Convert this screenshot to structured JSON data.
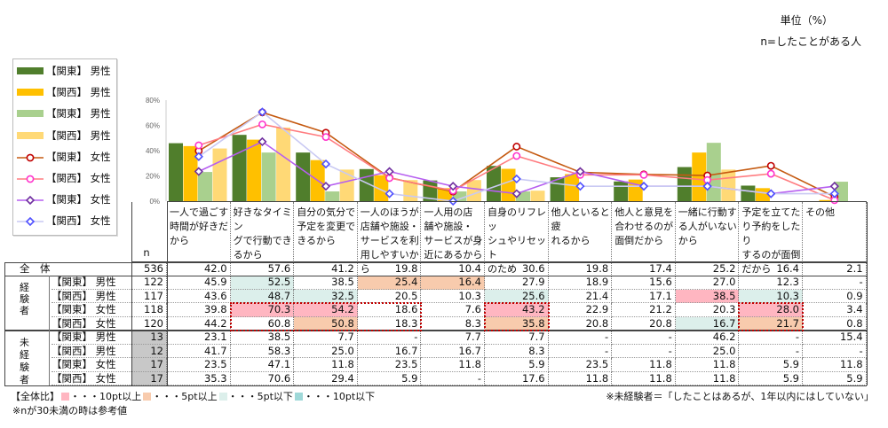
{
  "unit_label": "単位（%）",
  "base_label": "n=したことがある人",
  "chart_data": {
    "type": "bar+line",
    "yticks": [
      "0%",
      "20%",
      "40%",
      "60%",
      "80%"
    ],
    "ylim": [
      0,
      80
    ],
    "categories": [
      "一人で過ごす\n時間が好きだ\nから",
      "好きなタイミン\nグで行動でき\nるから",
      "自分の気分で\n予定を変更で\nきるから",
      "一人のほうが\n店舗や施設・\nサービスを利\n用しやすいから",
      "一人用の店\n舗や施設・\nサービスが身\n近にあるから",
      "自身のリフレッ\nシュやリセット\nのため",
      "他人といると疲\nれるから",
      "他人と意見を\n合わせるのが\n面倒だから",
      "一緒に行動す\nる人がいない\nから",
      "予定を立てた\nり予約をしたり\nするのが面倒\nだから",
      "その他"
    ],
    "series": [
      {
        "name": "【関東】 男性",
        "kind": "bar",
        "color": "#507e2c",
        "values": [
          45.9,
          52.5,
          38.5,
          25.4,
          16.4,
          27.9,
          18.9,
          15.6,
          27.0,
          12.3,
          0
        ]
      },
      {
        "name": "【関西】 男性",
        "kind": "bar",
        "color": "#ffc000",
        "values": [
          43.6,
          48.7,
          32.5,
          20.5,
          10.3,
          25.6,
          21.4,
          17.1,
          38.5,
          10.3,
          0.9
        ]
      },
      {
        "name": "【関東】 男性",
        "kind": "bar",
        "color": "#a9d08e",
        "values": [
          23.1,
          38.5,
          7.7,
          0,
          7.7,
          7.7,
          0,
          0,
          46.2,
          0,
          15.4
        ]
      },
      {
        "name": "【関西】 男性",
        "kind": "bar",
        "color": "#ffd976",
        "values": [
          41.7,
          58.3,
          25.0,
          16.7,
          16.7,
          8.3,
          0,
          0,
          25.0,
          0,
          0
        ]
      },
      {
        "name": "【関東】 女性",
        "kind": "line",
        "color": "#c55a11",
        "marker": "#c00000",
        "shape": "circle",
        "values": [
          39.8,
          70.3,
          54.2,
          18.6,
          7.6,
          43.2,
          22.9,
          21.2,
          20.3,
          28.0,
          3.4
        ]
      },
      {
        "name": "【関西】 女性",
        "kind": "line",
        "color": "#ff7c80",
        "marker": "#ff33cc",
        "shape": "circle",
        "values": [
          44.2,
          60.8,
          50.8,
          18.3,
          8.3,
          35.8,
          20.8,
          20.8,
          16.7,
          21.7,
          0.8
        ]
      },
      {
        "name": "【関東】 女性",
        "kind": "line",
        "color": "#b65ef0",
        "marker": "#7030a0",
        "shape": "diamond",
        "values": [
          23.5,
          47.1,
          11.8,
          23.5,
          11.8,
          5.9,
          23.5,
          11.8,
          11.8,
          5.9,
          11.8
        ]
      },
      {
        "name": "【関西】 女性",
        "kind": "line",
        "color": "#c9c9f3",
        "marker": "#5050ff",
        "shape": "diamond",
        "values": [
          35.3,
          70.6,
          29.4,
          5.9,
          0,
          17.6,
          11.8,
          11.8,
          11.8,
          5.9,
          5.9
        ]
      }
    ]
  },
  "table": {
    "n_header": "n",
    "total_label": "全　体",
    "groups": [
      {
        "label": "経\n験\n者"
      },
      {
        "label": "未\n経\n験\n者"
      }
    ],
    "rows": [
      {
        "label": "全　体",
        "n": "536",
        "values": [
          "42.0",
          "57.6",
          "41.2",
          "19.8",
          "10.4",
          "30.6",
          "19.8",
          "17.4",
          "25.2",
          "16.4",
          "2.1"
        ],
        "hl": [
          "",
          "",
          "",
          "",
          "",
          "",
          "",
          "",
          "",
          "",
          ""
        ]
      },
      {
        "label": "【関東】 男性",
        "n": "122",
        "values": [
          "45.9",
          "52.5",
          "38.5",
          "25.4",
          "16.4",
          "27.9",
          "18.9",
          "15.6",
          "27.0",
          "12.3",
          "-"
        ],
        "hl": [
          "",
          "m5",
          "",
          "p5",
          "p5",
          "",
          "",
          "",
          "",
          "",
          ""
        ]
      },
      {
        "label": "【関西】 男性",
        "n": "117",
        "values": [
          "43.6",
          "48.7",
          "32.5",
          "20.5",
          "10.3",
          "25.6",
          "21.4",
          "17.1",
          "38.5",
          "10.3",
          "0.9"
        ],
        "hl": [
          "",
          "m5",
          "m5",
          "",
          "",
          "m5",
          "",
          "",
          "p10",
          "m5",
          ""
        ]
      },
      {
        "label": "【関東】 女性",
        "n": "118",
        "values": [
          "39.8",
          "70.3",
          "54.2",
          "18.6",
          "7.6",
          "43.2",
          "22.9",
          "21.2",
          "20.3",
          "28.0",
          "3.4"
        ],
        "hl": [
          "",
          "p10",
          "p10",
          "",
          "",
          "p10",
          "",
          "",
          "",
          "p10",
          ""
        ]
      },
      {
        "label": "【関西】 女性",
        "n": "120",
        "values": [
          "44.2",
          "60.8",
          "50.8",
          "18.3",
          "8.3",
          "35.8",
          "20.8",
          "20.8",
          "16.7",
          "21.7",
          "0.8"
        ],
        "hl": [
          "",
          "",
          "p5",
          "",
          "",
          "p5",
          "",
          "",
          "m5",
          "p5",
          ""
        ]
      },
      {
        "label": "【関東】 男性",
        "n": "13",
        "values": [
          "23.1",
          "38.5",
          "7.7",
          "-",
          "7.7",
          "7.7",
          "-",
          "-",
          "46.2",
          "-",
          "15.4"
        ],
        "hl": [
          "",
          "",
          "",
          "",
          "",
          "",
          "",
          "",
          "",
          "",
          ""
        ]
      },
      {
        "label": "【関西】 男性",
        "n": "12",
        "values": [
          "41.7",
          "58.3",
          "25.0",
          "16.7",
          "16.7",
          "8.3",
          "-",
          "-",
          "25.0",
          "-",
          "-"
        ],
        "hl": [
          "",
          "",
          "",
          "",
          "",
          "",
          "",
          "",
          "",
          "",
          ""
        ]
      },
      {
        "label": "【関東】 女性",
        "n": "17",
        "values": [
          "23.5",
          "47.1",
          "11.8",
          "23.5",
          "11.8",
          "5.9",
          "23.5",
          "11.8",
          "11.8",
          "5.9",
          "11.8"
        ],
        "hl": [
          "",
          "",
          "",
          "",
          "",
          "",
          "",
          "",
          "",
          "",
          ""
        ]
      },
      {
        "label": "【関西】 女性",
        "n": "17",
        "values": [
          "35.3",
          "70.6",
          "29.4",
          "5.9",
          "-",
          "17.6",
          "11.8",
          "11.8",
          "11.8",
          "5.9",
          "5.9"
        ],
        "hl": [
          "",
          "",
          "",
          "",
          "",
          "",
          "",
          "",
          "",
          "",
          ""
        ]
      }
    ]
  },
  "notes": {
    "legend_prefix": "【全体比】",
    "items": [
      {
        "cls": "p10",
        "text": "・・・10pt以上"
      },
      {
        "cls": "p5",
        "text": "・・・5pt以上"
      },
      {
        "cls": "m5",
        "text": "・・・5pt以下"
      },
      {
        "cls": "m10",
        "text": "・・・10pt以下"
      }
    ],
    "n_note": "※nが30未満の時は参考値",
    "def_note": "※未経験者＝「したことはあるが、1年以内にはしていない」"
  }
}
